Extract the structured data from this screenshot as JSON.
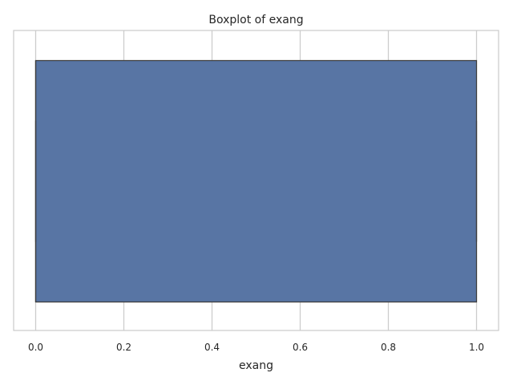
{
  "chart_data": {
    "type": "box",
    "title": "Boxplot of exang",
    "xlabel": "exang",
    "ylabel": "",
    "orientation": "horizontal",
    "xlim": [
      -0.05,
      1.05
    ],
    "xticks": [
      0.0,
      0.2,
      0.4,
      0.6,
      0.8,
      1.0
    ],
    "xtick_labels": [
      "0.0",
      "0.2",
      "0.4",
      "0.6",
      "0.8",
      "1.0"
    ],
    "grid": true,
    "series": [
      {
        "min": 0.0,
        "q1": 0.0,
        "median": 0.0,
        "q3": 1.0,
        "max": 1.0,
        "color": "#5875a4",
        "edge_color": "#3d3d3d"
      }
    ]
  }
}
